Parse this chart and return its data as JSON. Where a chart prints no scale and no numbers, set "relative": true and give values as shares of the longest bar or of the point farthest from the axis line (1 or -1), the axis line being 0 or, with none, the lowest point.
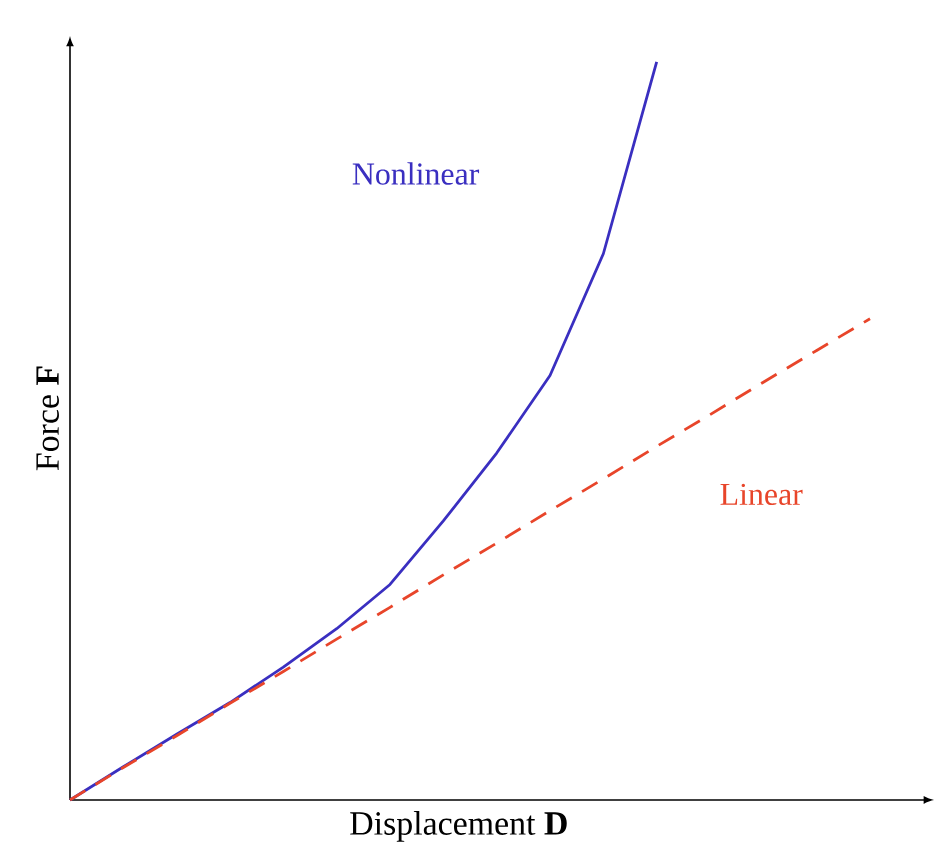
{
  "chart_data": {
    "type": "line",
    "relative": true,
    "xlabel": "Displacement **D**",
    "ylabel": "Force **F**",
    "marker": "none",
    "categories": [
      null,
      null,
      null,
      null,
      null,
      null,
      null,
      null,
      null,
      null,
      null,
      null,
      null,
      null,
      null,
      null
    ],
    "series": [
      {
        "name": "Nonlinear",
        "color": "#3a2fc0",
        "line_style": "solid",
        "values": [
          0,
          0.045,
          0.089,
          0.132,
          0.18,
          0.232,
          0.292,
          0.378,
          0.47,
          0.575,
          0.74,
          1,
          null,
          null,
          null,
          null
        ]
      },
      {
        "name": "Linear",
        "color": "#e8452a",
        "line_style": "dashed",
        "values": [
          0,
          0.044,
          0.087,
          0.131,
          0.174,
          0.218,
          0.261,
          0.305,
          0.348,
          0.392,
          0.435,
          0.479,
          0.522,
          0.566,
          0.609,
          0.652
        ]
      }
    ]
  }
}
